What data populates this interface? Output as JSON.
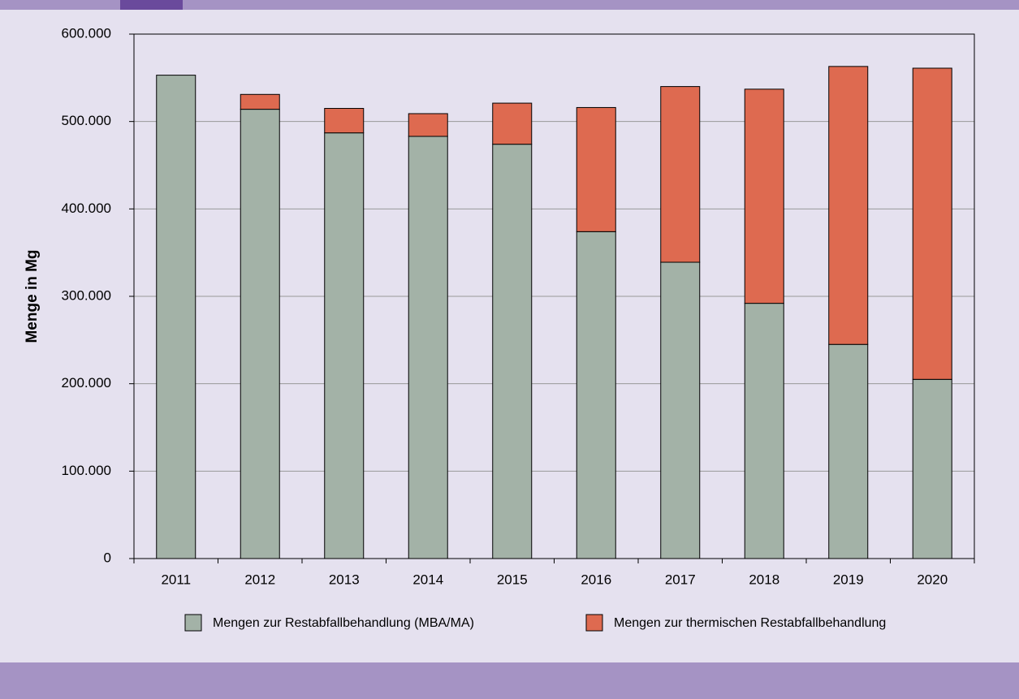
{
  "chart_data": {
    "type": "stacked_bar",
    "y_label": "Menge in Mg",
    "categories": [
      "2011",
      "2012",
      "2013",
      "2014",
      "2015",
      "2016",
      "2017",
      "2018",
      "2019",
      "2020"
    ],
    "series": [
      {
        "name": "Mengen zur Restabfallbehandlung (MBA/MA)",
        "color": "#a3b2a7",
        "values": [
          553000,
          514000,
          487000,
          483000,
          474000,
          374000,
          339000,
          292000,
          245000,
          205000
        ]
      },
      {
        "name": "Mengen zur thermischen Restabfallbehandlung",
        "color": "#de6a50",
        "values": [
          0,
          17000,
          28000,
          26000,
          47000,
          142000,
          201000,
          245000,
          318000,
          356000
        ]
      }
    ],
    "ylim": [
      0,
      600000
    ],
    "yticks": [
      0,
      {
        "value": 100000,
        "label": "100.000"
      },
      {
        "value": 200000,
        "label": "200.000"
      },
      {
        "value": 300000,
        "label": "300.000"
      },
      {
        "value": 400000,
        "label": "400.000"
      },
      {
        "value": 500000,
        "label": "500.000"
      },
      {
        "value": 600000,
        "label": "600.000"
      }
    ],
    "grid": true,
    "legend": "bottom"
  }
}
